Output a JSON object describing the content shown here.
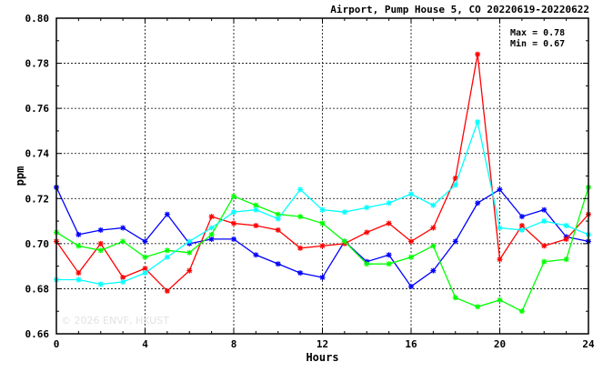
{
  "chart_data": {
    "type": "line",
    "title": "Airport, Pump House 5, CO 20220619-20220622",
    "xlabel": "Hours",
    "ylabel": "ppm",
    "xlim": [
      0,
      24
    ],
    "ylim": [
      0.66,
      0.8
    ],
    "xticks": [
      "0",
      "4",
      "8",
      "12",
      "16",
      "20",
      "24"
    ],
    "yticks": [
      "0.66",
      "0.68",
      "0.70",
      "0.72",
      "0.74",
      "0.76",
      "0.78",
      "0.80"
    ],
    "grid": true,
    "stats": {
      "max_label": "Max = 0.78",
      "min_label": "Min = 0.67"
    },
    "watermark": "© 2026 ENVF, HKUST",
    "x": [
      0,
      1,
      2,
      3,
      4,
      5,
      6,
      7,
      8,
      9,
      10,
      11,
      12,
      13,
      14,
      15,
      16,
      17,
      18,
      19,
      20,
      21,
      22,
      23,
      24
    ],
    "series": [
      {
        "color": "#0000ff",
        "values": [
          0.725,
          0.704,
          0.706,
          0.707,
          0.701,
          0.713,
          0.7,
          0.702,
          0.702,
          0.695,
          0.691,
          0.687,
          0.685,
          0.701,
          0.692,
          0.695,
          0.681,
          0.688,
          0.701,
          0.718,
          0.724,
          0.712,
          0.715,
          0.703,
          0.701
        ]
      },
      {
        "color": "#ff0000",
        "values": [
          0.701,
          0.687,
          0.7,
          0.685,
          0.689,
          0.679,
          0.688,
          0.712,
          0.709,
          0.708,
          0.706,
          0.698,
          0.699,
          0.7,
          0.705,
          0.709,
          0.701,
          0.707,
          0.729,
          0.784,
          0.693,
          0.708,
          0.699,
          0.702,
          0.713
        ]
      },
      {
        "color": "#00ff00",
        "values": [
          0.705,
          0.699,
          0.697,
          0.701,
          0.694,
          0.697,
          0.696,
          0.704,
          0.721,
          0.717,
          0.713,
          0.712,
          0.709,
          0.701,
          0.691,
          0.691,
          0.694,
          0.699,
          0.676,
          0.672,
          0.675,
          0.67,
          0.692,
          0.693,
          0.725
        ]
      },
      {
        "color": "#00ffff",
        "values": [
          0.684,
          0.684,
          0.682,
          0.683,
          0.687,
          0.694,
          0.701,
          0.707,
          0.714,
          0.715,
          0.711,
          0.724,
          0.715,
          0.714,
          0.716,
          0.718,
          0.722,
          0.717,
          0.726,
          0.754,
          0.707,
          0.706,
          0.71,
          0.708,
          0.704
        ]
      }
    ]
  }
}
